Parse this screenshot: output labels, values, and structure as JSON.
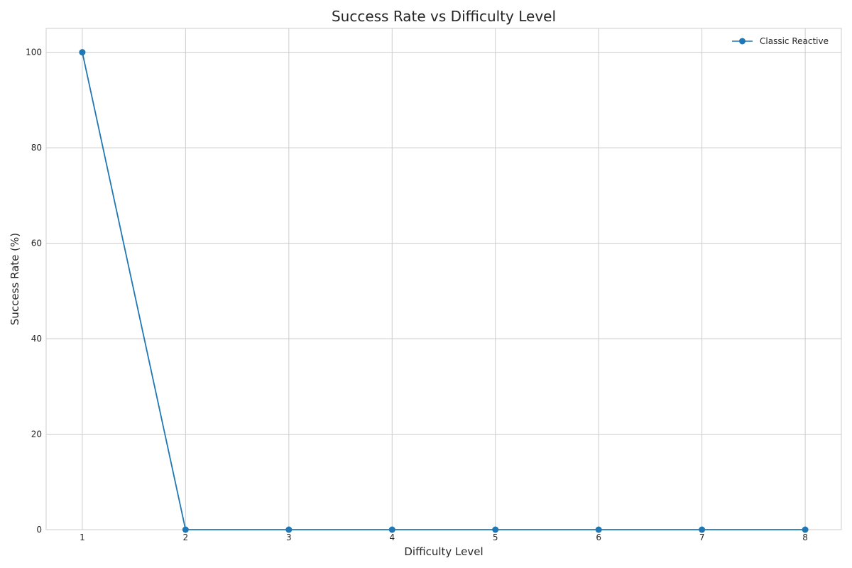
{
  "chart_data": {
    "type": "line",
    "title": "Success Rate vs Difficulty Level",
    "xlabel": "Difficulty Level",
    "ylabel": "Success Rate (%)",
    "x": [
      1,
      2,
      3,
      4,
      5,
      6,
      7,
      8
    ],
    "xticks": [
      "1",
      "2",
      "3",
      "4",
      "5",
      "6",
      "7",
      "8"
    ],
    "yticks": [
      "0",
      "20",
      "40",
      "60",
      "80",
      "100"
    ],
    "xlim": [
      0.65,
      8.35
    ],
    "ylim": [
      0,
      105
    ],
    "grid": true,
    "legend_position": "top-right",
    "series": [
      {
        "name": "Classic Reactive",
        "color": "#1f77b4",
        "marker": "circle",
        "values": [
          100,
          0,
          0,
          0,
          0,
          0,
          0,
          0
        ]
      }
    ]
  }
}
